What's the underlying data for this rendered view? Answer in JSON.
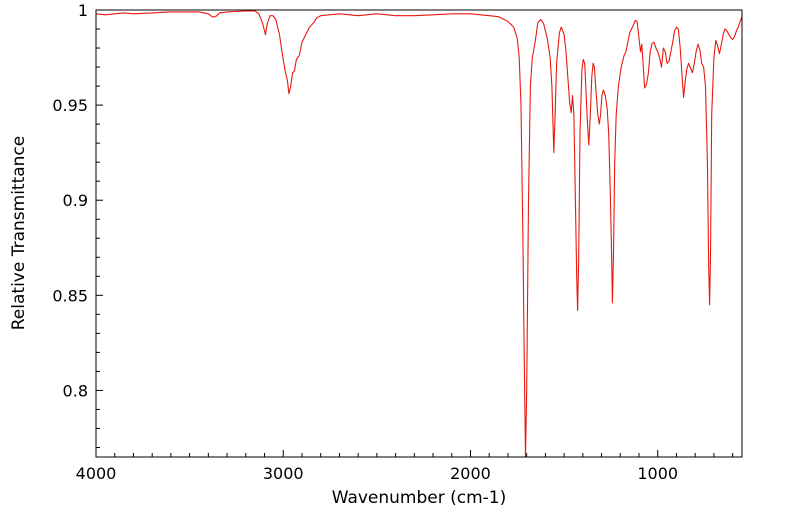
{
  "chart_data": {
    "type": "line",
    "title": "",
    "xlabel": "Wavenumber (cm-1)",
    "ylabel": "Relative Transmittance",
    "xlim": [
      4000,
      550
    ],
    "ylim": [
      0.765,
      1.0
    ],
    "x_reversed": true,
    "grid": false,
    "legend": "none",
    "x_ticks": [
      4000,
      3000,
      2000,
      1000
    ],
    "x_tick_labels": [
      "4000",
      "3000",
      "2000",
      "1000"
    ],
    "y_ticks": [
      0.8,
      0.85,
      0.9,
      0.95,
      1.0
    ],
    "y_tick_labels": [
      "0.8",
      "0.85",
      "0.9",
      "0.95",
      "1"
    ],
    "series": [
      {
        "color": "#e8190f",
        "points": [
          [
            4000,
            0.998
          ],
          [
            3950,
            0.9975
          ],
          [
            3900,
            0.998
          ],
          [
            3850,
            0.9985
          ],
          [
            3800,
            0.998
          ],
          [
            3700,
            0.9985
          ],
          [
            3600,
            0.999
          ],
          [
            3500,
            0.999
          ],
          [
            3450,
            0.999
          ],
          [
            3400,
            0.998
          ],
          [
            3380,
            0.9965
          ],
          [
            3370,
            0.9963
          ],
          [
            3355,
            0.997
          ],
          [
            3340,
            0.9985
          ],
          [
            3300,
            0.999
          ],
          [
            3200,
            0.9995
          ],
          [
            3150,
            0.9995
          ],
          [
            3130,
            0.998
          ],
          [
            3110,
            0.993
          ],
          [
            3095,
            0.987
          ],
          [
            3085,
            0.993
          ],
          [
            3070,
            0.997
          ],
          [
            3055,
            0.997
          ],
          [
            3040,
            0.995
          ],
          [
            3020,
            0.987
          ],
          [
            3005,
            0.977
          ],
          [
            2990,
            0.968
          ],
          [
            2978,
            0.963
          ],
          [
            2970,
            0.956
          ],
          [
            2960,
            0.96
          ],
          [
            2950,
            0.967
          ],
          [
            2940,
            0.968
          ],
          [
            2930,
            0.974
          ],
          [
            2915,
            0.976
          ],
          [
            2900,
            0.983
          ],
          [
            2880,
            0.987
          ],
          [
            2860,
            0.991
          ],
          [
            2840,
            0.993
          ],
          [
            2820,
            0.996
          ],
          [
            2800,
            0.997
          ],
          [
            2700,
            0.998
          ],
          [
            2600,
            0.997
          ],
          [
            2500,
            0.998
          ],
          [
            2400,
            0.997
          ],
          [
            2300,
            0.997
          ],
          [
            2200,
            0.9975
          ],
          [
            2100,
            0.998
          ],
          [
            2000,
            0.998
          ],
          [
            1900,
            0.997
          ],
          [
            1850,
            0.9965
          ],
          [
            1820,
            0.995
          ],
          [
            1800,
            0.994
          ],
          [
            1770,
            0.991
          ],
          [
            1750,
            0.985
          ],
          [
            1740,
            0.975
          ],
          [
            1730,
            0.95
          ],
          [
            1720,
            0.88
          ],
          [
            1712,
            0.81
          ],
          [
            1706,
            0.765
          ],
          [
            1700,
            0.8
          ],
          [
            1690,
            0.9
          ],
          [
            1680,
            0.96
          ],
          [
            1670,
            0.975
          ],
          [
            1655,
            0.983
          ],
          [
            1640,
            0.9935
          ],
          [
            1625,
            0.995
          ],
          [
            1610,
            0.993
          ],
          [
            1590,
            0.985
          ],
          [
            1575,
            0.975
          ],
          [
            1565,
            0.96
          ],
          [
            1555,
            0.925
          ],
          [
            1548,
            0.945
          ],
          [
            1540,
            0.972
          ],
          [
            1525,
            0.988
          ],
          [
            1515,
            0.991
          ],
          [
            1500,
            0.987
          ],
          [
            1490,
            0.978
          ],
          [
            1478,
            0.962
          ],
          [
            1470,
            0.951
          ],
          [
            1462,
            0.946
          ],
          [
            1455,
            0.955
          ],
          [
            1448,
            0.945
          ],
          [
            1440,
            0.9
          ],
          [
            1433,
            0.86
          ],
          [
            1428,
            0.842
          ],
          [
            1422,
            0.87
          ],
          [
            1415,
            0.935
          ],
          [
            1405,
            0.968
          ],
          [
            1398,
            0.974
          ],
          [
            1390,
            0.972
          ],
          [
            1382,
            0.955
          ],
          [
            1375,
            0.94
          ],
          [
            1368,
            0.929
          ],
          [
            1360,
            0.945
          ],
          [
            1352,
            0.965
          ],
          [
            1345,
            0.972
          ],
          [
            1338,
            0.97
          ],
          [
            1330,
            0.958
          ],
          [
            1320,
            0.945
          ],
          [
            1312,
            0.94
          ],
          [
            1305,
            0.945
          ],
          [
            1298,
            0.955
          ],
          [
            1290,
            0.958
          ],
          [
            1280,
            0.955
          ],
          [
            1270,
            0.948
          ],
          [
            1262,
            0.935
          ],
          [
            1255,
            0.91
          ],
          [
            1248,
            0.88
          ],
          [
            1242,
            0.846
          ],
          [
            1236,
            0.872
          ],
          [
            1230,
            0.92
          ],
          [
            1222,
            0.945
          ],
          [
            1210,
            0.96
          ],
          [
            1195,
            0.97
          ],
          [
            1180,
            0.976
          ],
          [
            1170,
            0.978
          ],
          [
            1160,
            0.983
          ],
          [
            1150,
            0.988
          ],
          [
            1140,
            0.99
          ],
          [
            1130,
            0.992
          ],
          [
            1120,
            0.9945
          ],
          [
            1110,
            0.994
          ],
          [
            1100,
            0.985
          ],
          [
            1092,
            0.978
          ],
          [
            1085,
            0.982
          ],
          [
            1078,
            0.972
          ],
          [
            1070,
            0.959
          ],
          [
            1060,
            0.961
          ],
          [
            1050,
            0.967
          ],
          [
            1040,
            0.978
          ],
          [
            1030,
            0.9825
          ],
          [
            1020,
            0.983
          ],
          [
            1010,
            0.98
          ],
          [
            1000,
            0.978
          ],
          [
            990,
            0.975
          ],
          [
            980,
            0.97
          ],
          [
            970,
            0.98
          ],
          [
            960,
            0.978
          ],
          [
            950,
            0.972
          ],
          [
            940,
            0.973
          ],
          [
            930,
            0.978
          ],
          [
            920,
            0.983
          ],
          [
            910,
            0.989
          ],
          [
            900,
            0.991
          ],
          [
            890,
            0.99
          ],
          [
            880,
            0.98
          ],
          [
            870,
            0.965
          ],
          [
            862,
            0.954
          ],
          [
            854,
            0.962
          ],
          [
            845,
            0.969
          ],
          [
            835,
            0.972
          ],
          [
            825,
            0.9695
          ],
          [
            815,
            0.967
          ],
          [
            805,
            0.972
          ],
          [
            795,
            0.978
          ],
          [
            785,
            0.982
          ],
          [
            775,
            0.979
          ],
          [
            765,
            0.972
          ],
          [
            755,
            0.97
          ],
          [
            745,
            0.96
          ],
          [
            735,
            0.92
          ],
          [
            728,
            0.865
          ],
          [
            723,
            0.845
          ],
          [
            718,
            0.87
          ],
          [
            712,
            0.945
          ],
          [
            700,
            0.975
          ],
          [
            690,
            0.984
          ],
          [
            680,
            0.981
          ],
          [
            670,
            0.977
          ],
          [
            660,
            0.982
          ],
          [
            650,
            0.9875
          ],
          [
            640,
            0.99
          ],
          [
            630,
            0.989
          ],
          [
            620,
            0.987
          ],
          [
            610,
            0.9855
          ],
          [
            600,
            0.9845
          ],
          [
            590,
            0.986
          ],
          [
            580,
            0.989
          ],
          [
            570,
            0.991
          ],
          [
            560,
            0.994
          ],
          [
            550,
            0.9965
          ]
        ]
      }
    ]
  }
}
